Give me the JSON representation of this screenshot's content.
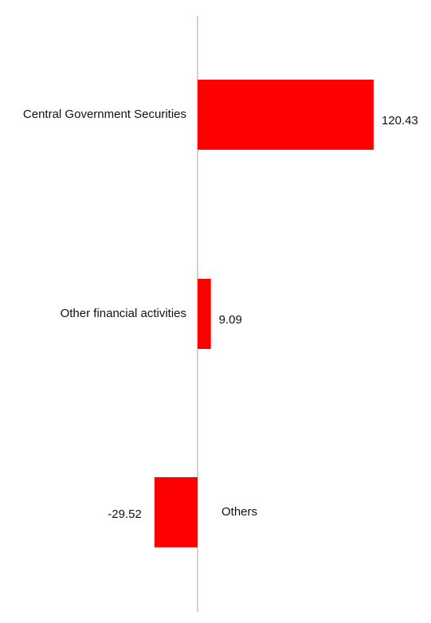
{
  "chart_data": {
    "type": "bar",
    "orientation": "horizontal",
    "categories": [
      "Central Government Securities",
      "Other financial activities",
      "Others"
    ],
    "values": [
      120.43,
      9.09,
      -29.52
    ],
    "data_labels": [
      "120.43",
      "9.09",
      "-29.52"
    ],
    "title": "",
    "xlabel": "",
    "ylabel": "",
    "bar_color": "#ff0000",
    "axis_color": "#d0d0d0",
    "grid": false,
    "legend": "none"
  }
}
